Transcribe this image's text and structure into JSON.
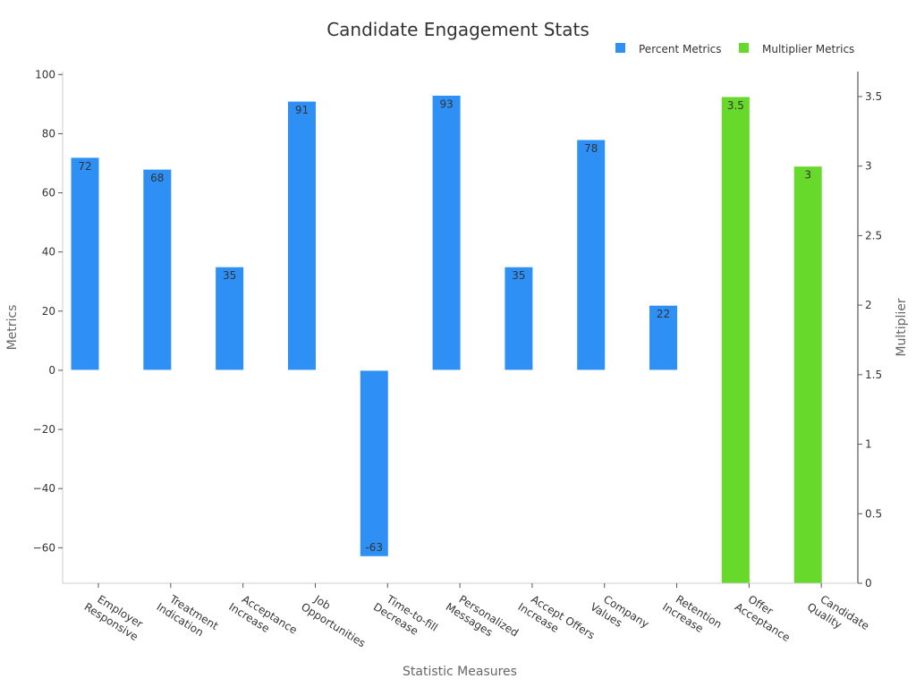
{
  "chart_data": {
    "type": "bar",
    "title": "Candidate Engagement Stats",
    "xlabel": "Statistic Measures",
    "ylabel": "Metrics",
    "y2label": "Multiplier",
    "categories": [
      [
        "Employer",
        "Responsive"
      ],
      [
        "Treatment",
        "Indication"
      ],
      [
        "Acceptance",
        "Increase"
      ],
      [
        "Job",
        "Opportunities"
      ],
      [
        "Time-to-fill",
        "Decrease"
      ],
      [
        "Personalized",
        "Messages"
      ],
      [
        "Accept Offers",
        "Increase"
      ],
      [
        "Company",
        "Values"
      ],
      [
        "Retention",
        "Increase"
      ],
      [
        "Offer",
        "Acceptance"
      ],
      [
        "Candidate",
        "Quality"
      ]
    ],
    "series": [
      {
        "name": "Percent Metrics",
        "axis": "left",
        "color": "#2e8ff5",
        "values": [
          72,
          68,
          35,
          91,
          -63,
          93,
          35,
          78,
          22,
          null,
          null
        ],
        "labels": [
          "72",
          "68",
          "35",
          "91",
          "-63",
          "93",
          "35",
          "78",
          "22",
          null,
          null
        ]
      },
      {
        "name": "Multiplier Metrics",
        "axis": "right",
        "color": "#66d92b",
        "values": [
          null,
          null,
          null,
          null,
          null,
          null,
          null,
          null,
          null,
          3.5,
          3
        ],
        "labels": [
          null,
          null,
          null,
          null,
          null,
          null,
          null,
          null,
          null,
          "3.5",
          "3"
        ]
      }
    ],
    "ylim": [
      -72,
      101
    ],
    "yticks": [
      100,
      80,
      60,
      40,
      20,
      0,
      -20,
      -40,
      -60
    ],
    "ytick_labels": [
      "100",
      "80",
      "60",
      "40",
      "20",
      "0",
      "−20",
      "−40",
      "−60"
    ],
    "y2lim": [
      0,
      3.68
    ],
    "y2ticks": [
      0,
      0.5,
      1,
      1.5,
      2,
      2.5,
      3,
      3.5
    ],
    "y2tick_labels": [
      "0",
      "0.5",
      "1",
      "1.5",
      "2",
      "2.5",
      "3",
      "3.5"
    ],
    "legend_position": "top-right",
    "grid": false
  }
}
